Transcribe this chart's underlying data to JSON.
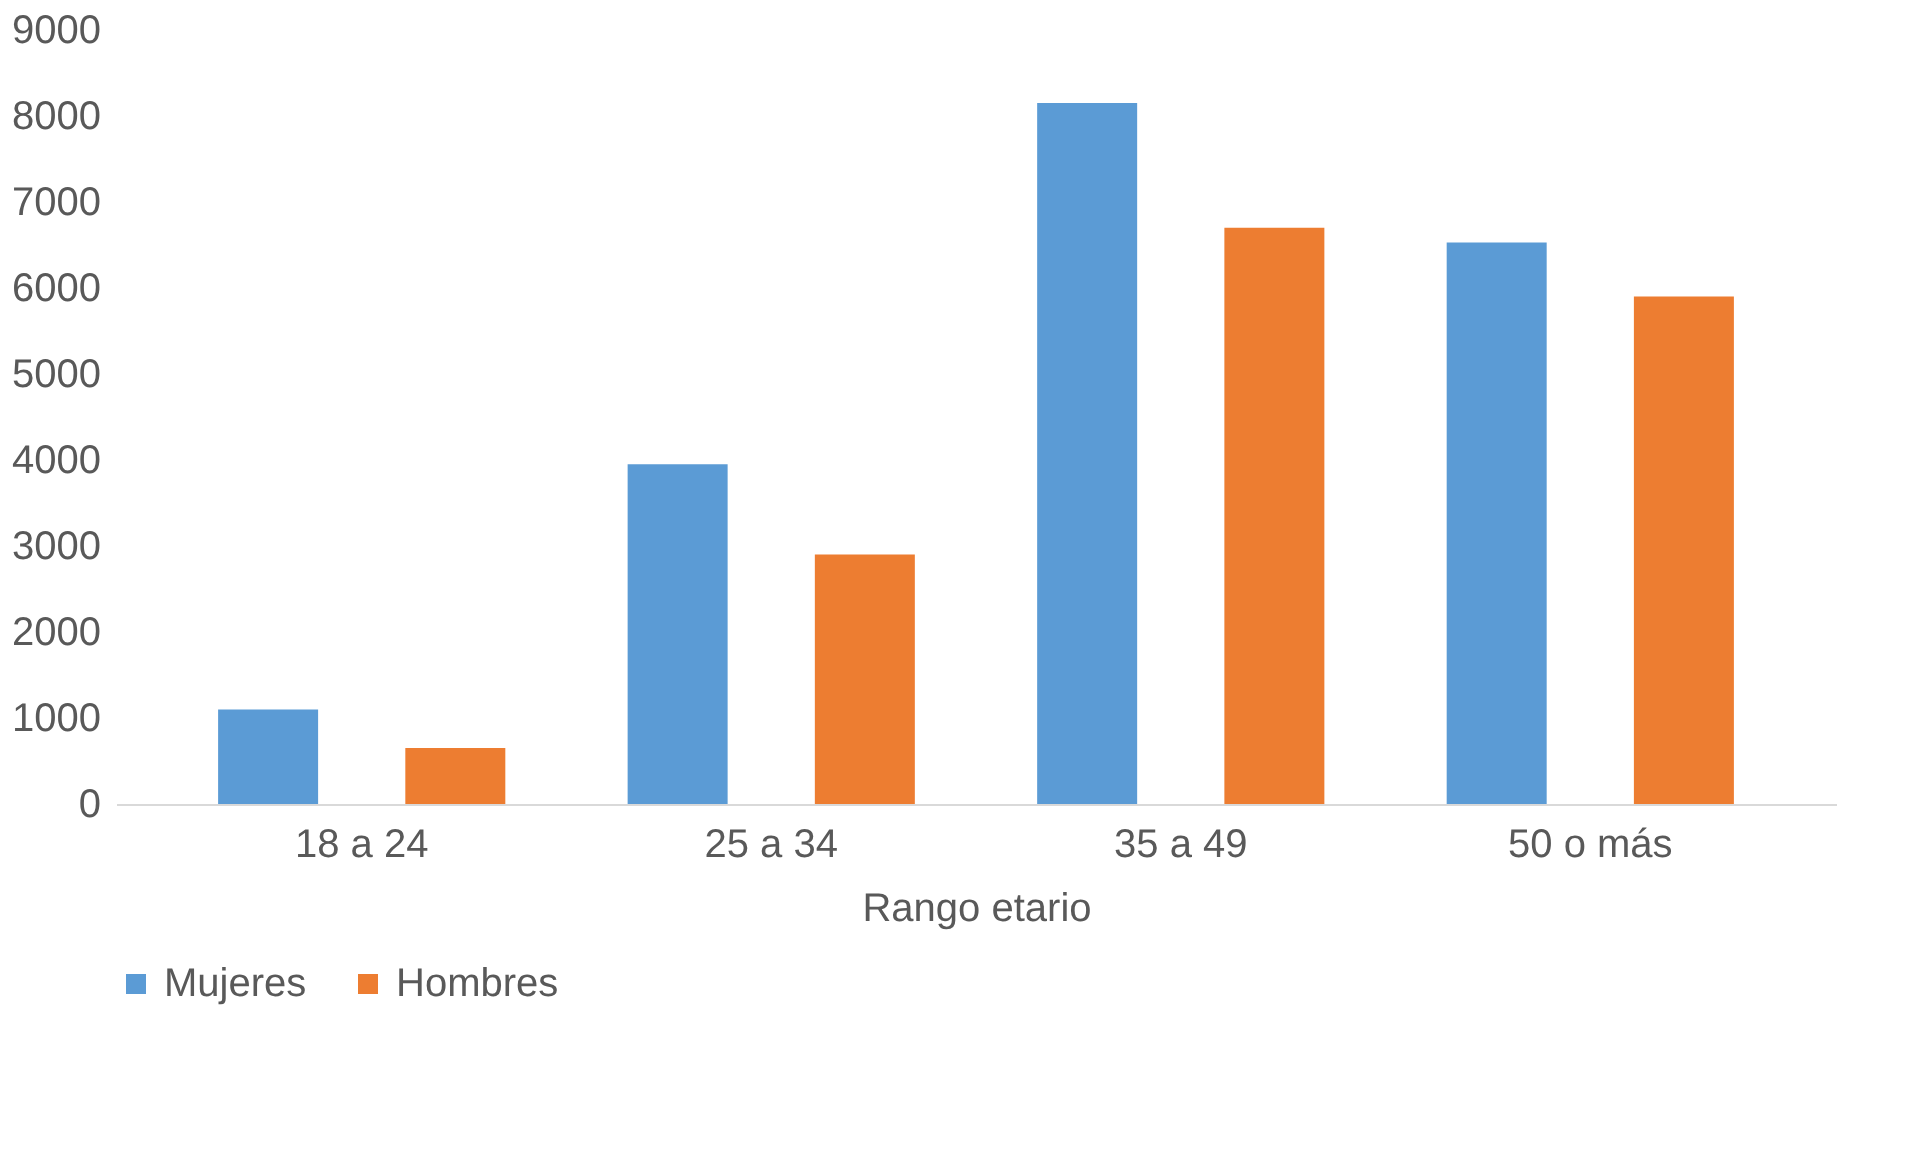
{
  "chart_data": {
    "type": "bar",
    "xlabel": "Rango etario",
    "categories": [
      "18 a 24",
      "25 a 34",
      "35 a 49",
      "50 o más"
    ],
    "series": [
      {
        "name": "Mujeres",
        "color": "#5b9bd5",
        "values": [
          1100,
          3950,
          8150,
          6530
        ]
      },
      {
        "name": "Hombres",
        "color": "#ed7d31",
        "values": [
          650,
          2900,
          6700,
          5900
        ]
      }
    ],
    "ylim": [
      0,
      9000
    ],
    "yticks": [
      0,
      1000,
      2000,
      3000,
      4000,
      5000,
      6000,
      7000,
      8000,
      9000
    ],
    "grid": false,
    "legend": "bottom"
  }
}
